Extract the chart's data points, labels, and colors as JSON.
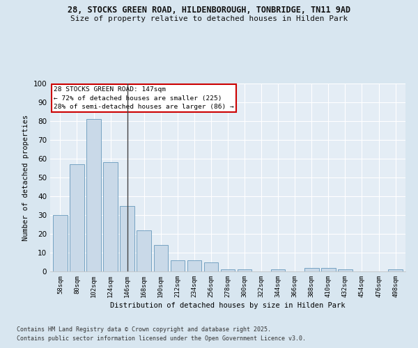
{
  "title1": "28, STOCKS GREEN ROAD, HILDENBOROUGH, TONBRIDGE, TN11 9AD",
  "title2": "Size of property relative to detached houses in Hilden Park",
  "xlabel": "Distribution of detached houses by size in Hilden Park",
  "ylabel": "Number of detached properties",
  "categories": [
    "58sqm",
    "80sqm",
    "102sqm",
    "124sqm",
    "146sqm",
    "168sqm",
    "190sqm",
    "212sqm",
    "234sqm",
    "256sqm",
    "278sqm",
    "300sqm",
    "322sqm",
    "344sqm",
    "366sqm",
    "388sqm",
    "410sqm",
    "432sqm",
    "454sqm",
    "476sqm",
    "498sqm"
  ],
  "values": [
    30,
    57,
    81,
    58,
    35,
    22,
    14,
    6,
    6,
    5,
    1,
    1,
    0,
    1,
    0,
    2,
    2,
    1,
    0,
    0,
    1
  ],
  "bar_color": "#c9d9e8",
  "bar_edge_color": "#6699bb",
  "highlight_bar_index": 4,
  "highlight_line_color": "#444444",
  "annotation_title": "28 STOCKS GREEN ROAD: 147sqm",
  "annotation_line1": "← 72% of detached houses are smaller (225)",
  "annotation_line2": "28% of semi-detached houses are larger (86) →",
  "annotation_box_color": "#ffffff",
  "annotation_box_edge": "#cc0000",
  "ylim": [
    0,
    100
  ],
  "yticks": [
    0,
    10,
    20,
    30,
    40,
    50,
    60,
    70,
    80,
    90,
    100
  ],
  "footnote1": "Contains HM Land Registry data © Crown copyright and database right 2025.",
  "footnote2": "Contains public sector information licensed under the Open Government Licence v3.0.",
  "fig_bg_color": "#d8e6f0",
  "plot_bg_color": "#e4edf5"
}
